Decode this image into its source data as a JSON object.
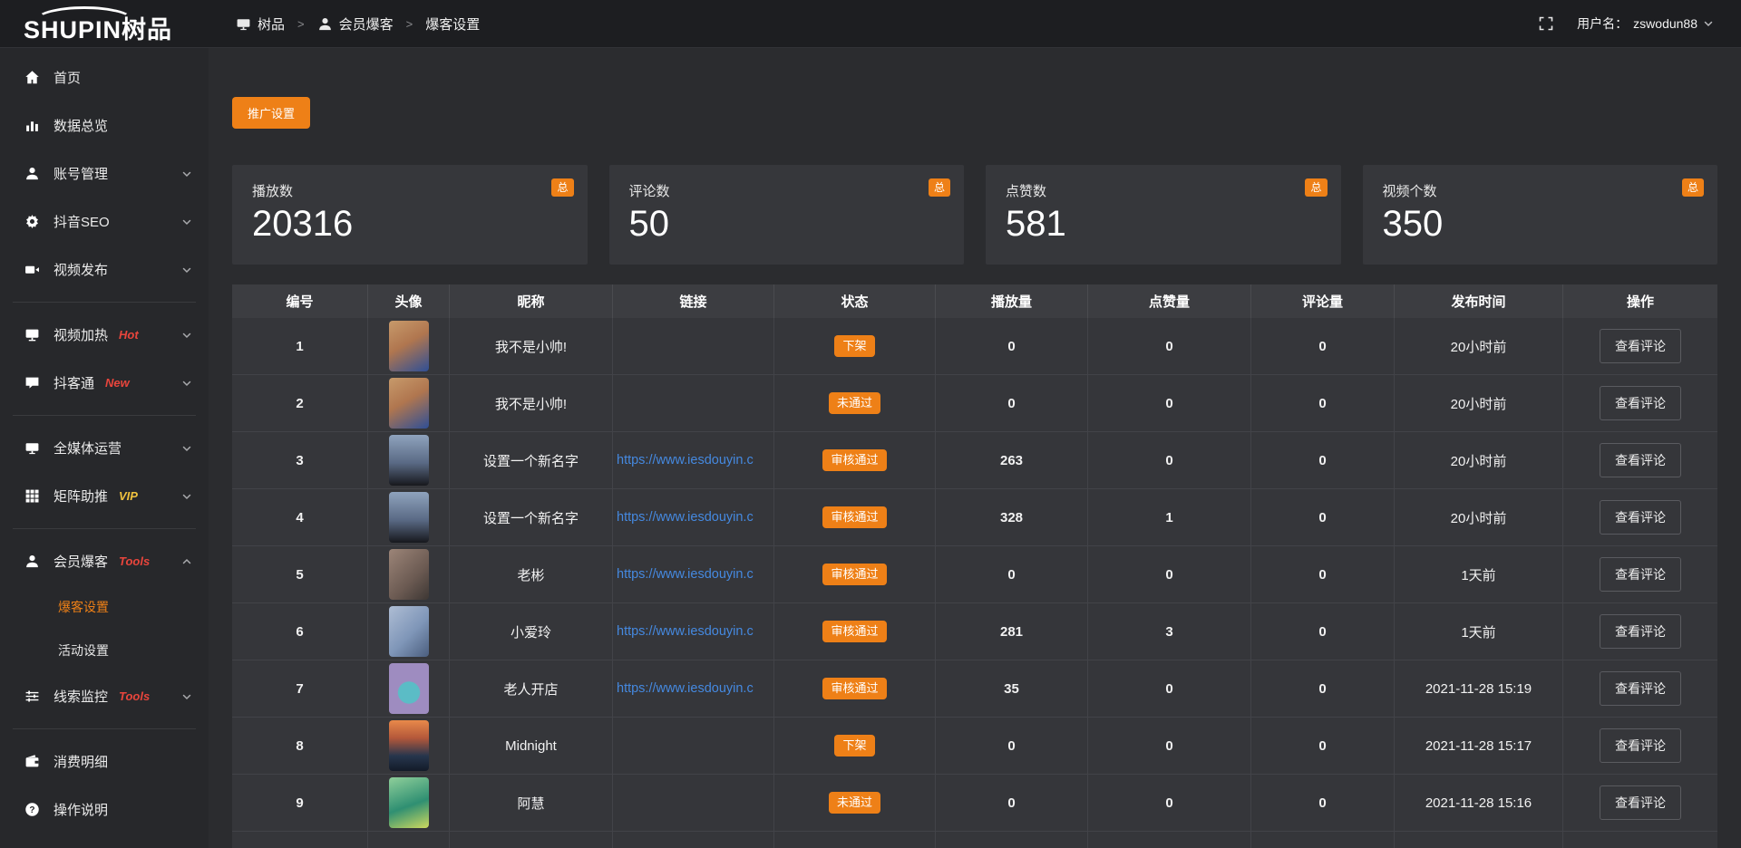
{
  "topbar": {
    "logo": {
      "en": "SHUPIN",
      "cn": "树品"
    },
    "breadcrumb": {
      "separator": ">",
      "items": [
        {
          "icon": "monitor-icon",
          "label": "树品"
        },
        {
          "icon": "user-icon",
          "label": "会员爆客"
        },
        {
          "icon": "",
          "label": "爆客设置"
        }
      ]
    },
    "username_label": "用户名：",
    "username": "zswodun88"
  },
  "sidebar": {
    "items": [
      {
        "type": "item",
        "icon": "home-icon",
        "label": "首页"
      },
      {
        "type": "item",
        "icon": "chart-icon",
        "label": "数据总览"
      },
      {
        "type": "item",
        "icon": "user-icon",
        "label": "账号管理",
        "expandable": true
      },
      {
        "type": "item",
        "icon": "gear-icon",
        "label": "抖音SEO",
        "expandable": true
      },
      {
        "type": "item",
        "icon": "video-icon",
        "label": "视频发布",
        "expandable": true
      },
      {
        "type": "divider"
      },
      {
        "type": "item",
        "icon": "screen-icon",
        "label": "视频加热",
        "badge": "Hot",
        "badge_color": "#e8453c",
        "expandable": true
      },
      {
        "type": "item",
        "icon": "comment-icon",
        "label": "抖客通",
        "badge": "New",
        "badge_color": "#e8453c",
        "expandable": true
      },
      {
        "type": "divider"
      },
      {
        "type": "item",
        "icon": "monitor-icon",
        "label": "全媒体运营",
        "expandable": true
      },
      {
        "type": "item",
        "icon": "grid-icon",
        "label": "矩阵助推",
        "badge": "VIP",
        "badge_color": "#f0c23e",
        "expandable": true
      },
      {
        "type": "divider"
      },
      {
        "type": "item",
        "icon": "member-icon",
        "label": "会员爆客",
        "badge": "Tools",
        "badge_color": "#e8453c",
        "expandable": true,
        "expanded": true,
        "children": [
          {
            "label": "爆客设置",
            "active": true
          },
          {
            "label": "活动设置",
            "active": false
          }
        ]
      },
      {
        "type": "item",
        "icon": "sliders-icon",
        "label": "线索监控",
        "badge": "Tools",
        "badge_color": "#e8453c",
        "expandable": true
      },
      {
        "type": "divider"
      },
      {
        "type": "item",
        "icon": "wallet-icon",
        "label": "消费明细"
      },
      {
        "type": "item",
        "icon": "help-icon",
        "label": "操作说明"
      }
    ]
  },
  "content": {
    "promo_button": "推广设置",
    "stats": [
      {
        "label": "播放数",
        "value": "20316",
        "badge": "总"
      },
      {
        "label": "评论数",
        "value": "50",
        "badge": "总"
      },
      {
        "label": "点赞数",
        "value": "581",
        "badge": "总"
      },
      {
        "label": "视频个数",
        "value": "350",
        "badge": "总"
      }
    ],
    "table": {
      "columns": [
        {
          "key": "num",
          "label": "编号"
        },
        {
          "key": "avatar",
          "label": "头像"
        },
        {
          "key": "nick",
          "label": "昵称"
        },
        {
          "key": "link",
          "label": "链接"
        },
        {
          "key": "status",
          "label": "状态"
        },
        {
          "key": "plays",
          "label": "播放量"
        },
        {
          "key": "likes",
          "label": "点赞量"
        },
        {
          "key": "comments",
          "label": "评论量"
        },
        {
          "key": "time",
          "label": "发布时间"
        },
        {
          "key": "action",
          "label": "操作"
        }
      ],
      "action_label": "查看评论",
      "rows": [
        {
          "num": "1",
          "nick": "我不是小帅!",
          "link": "",
          "status": "下架",
          "plays": "0",
          "likes": "0",
          "comments": "0",
          "time": "20小时前",
          "avatar_gradient": "linear-gradient(150deg,#c79a6b 0%,#b0764f 45%,#2f4f96 100%)"
        },
        {
          "num": "2",
          "nick": "我不是小帅!",
          "link": "",
          "status": "未通过",
          "plays": "0",
          "likes": "0",
          "comments": "0",
          "time": "20小时前",
          "avatar_gradient": "linear-gradient(150deg,#c79a6b 0%,#b0764f 45%,#2f4f96 100%)"
        },
        {
          "num": "3",
          "nick": "设置一个新名字",
          "link": "https://www.iesdouyin.c",
          "status": "审核通过",
          "plays": "263",
          "likes": "0",
          "comments": "0",
          "time": "20小时前",
          "avatar_gradient": "linear-gradient(180deg,#8fa3bd 0%,#5a6a85 55%,#17181d 100%)"
        },
        {
          "num": "4",
          "nick": "设置一个新名字",
          "link": "https://www.iesdouyin.c",
          "status": "审核通过",
          "plays": "328",
          "likes": "1",
          "comments": "0",
          "time": "20小时前",
          "avatar_gradient": "linear-gradient(180deg,#8fa3bd 0%,#5a6a85 55%,#17181d 100%)"
        },
        {
          "num": "5",
          "nick": "老彬",
          "link": "https://www.iesdouyin.c",
          "status": "审核通过",
          "plays": "0",
          "likes": "0",
          "comments": "0",
          "time": "1天前",
          "avatar_gradient": "linear-gradient(135deg,#9c8578 0%,#6b5a52 60%,#3d3734 100%)"
        },
        {
          "num": "6",
          "nick": "小爱玲",
          "link": "https://www.iesdouyin.c",
          "status": "审核通过",
          "plays": "281",
          "likes": "3",
          "comments": "0",
          "time": "1天前",
          "avatar_gradient": "linear-gradient(135deg,#aebdd4 0%,#7f96b8 55%,#4b5e7e 100%)"
        },
        {
          "num": "7",
          "nick": "老人开店",
          "link": "https://www.iesdouyin.c",
          "status": "审核通过",
          "plays": "35",
          "likes": "0",
          "comments": "0",
          "time": "2021-11-28 15:19",
          "avatar_gradient": "radial-gradient(circle at 50% 58%,#5bbcc6 0%,#5bbcc6 30%,#9e8cc0 32%,#9e8cc0 100%)"
        },
        {
          "num": "8",
          "nick": "Midnight",
          "link": "",
          "status": "下架",
          "plays": "0",
          "likes": "0",
          "comments": "0",
          "time": "2021-11-28 15:17",
          "avatar_gradient": "linear-gradient(180deg,#e8894a 0%,#b4583a 35%,#27364d 70%,#131b29 100%)"
        },
        {
          "num": "9",
          "nick": "阿慧",
          "link": "",
          "status": "未通过",
          "plays": "0",
          "likes": "0",
          "comments": "0",
          "time": "2021-11-28 15:16",
          "avatar_gradient": "linear-gradient(160deg,#8fcf9a 0%,#2f8f72 55%,#cdd95f 100%)"
        }
      ]
    }
  },
  "colors": {
    "accent_orange": "#ee8017",
    "link_blue": "#4589e0",
    "hot_badge_red": "#e8453c",
    "vip_badge_yellow": "#f0c23e"
  }
}
